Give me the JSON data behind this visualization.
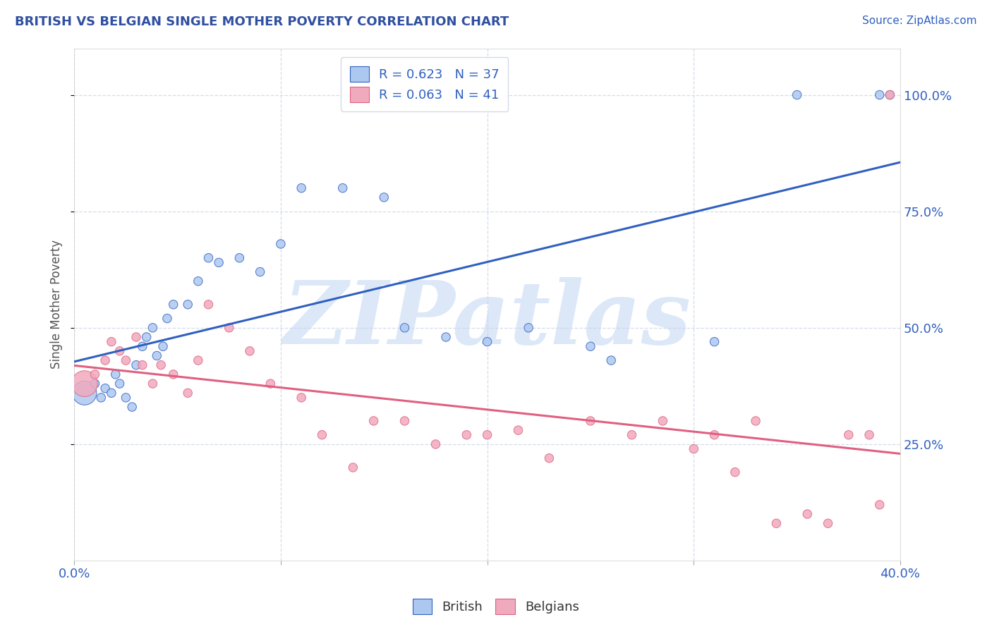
{
  "title": "BRITISH VS BELGIAN SINGLE MOTHER POVERTY CORRELATION CHART",
  "source_text": "Source: ZipAtlas.com",
  "ylabel": "Single Mother Poverty",
  "xlim": [
    0.0,
    0.4
  ],
  "ylim": [
    0.0,
    1.1
  ],
  "x_ticks": [
    0.0,
    0.1,
    0.2,
    0.3,
    0.4
  ],
  "y_ticks": [
    0.25,
    0.5,
    0.75,
    1.0
  ],
  "y_tick_labels": [
    "25.0%",
    "50.0%",
    "75.0%",
    "100.0%"
  ],
  "british_R": 0.623,
  "british_N": 37,
  "belgian_R": 0.063,
  "belgian_N": 41,
  "british_color": "#adc8f0",
  "belgian_color": "#f0aabe",
  "british_line_color": "#3060c0",
  "belgian_line_color": "#e06080",
  "watermark": "ZIPatlas",
  "watermark_color": "#dce8f8",
  "british_x": [
    0.005,
    0.01,
    0.013,
    0.015,
    0.018,
    0.02,
    0.022,
    0.025,
    0.028,
    0.03,
    0.033,
    0.035,
    0.038,
    0.04,
    0.043,
    0.045,
    0.048,
    0.055,
    0.06,
    0.065,
    0.07,
    0.08,
    0.09,
    0.1,
    0.11,
    0.13,
    0.15,
    0.16,
    0.18,
    0.2,
    0.22,
    0.25,
    0.26,
    0.31,
    0.35,
    0.39,
    0.395
  ],
  "british_y": [
    0.36,
    0.38,
    0.35,
    0.37,
    0.36,
    0.4,
    0.38,
    0.35,
    0.33,
    0.42,
    0.46,
    0.48,
    0.5,
    0.44,
    0.46,
    0.52,
    0.55,
    0.55,
    0.6,
    0.65,
    0.64,
    0.65,
    0.62,
    0.68,
    0.8,
    0.8,
    0.78,
    0.5,
    0.48,
    0.47,
    0.5,
    0.46,
    0.43,
    0.47,
    1.0,
    1.0,
    1.0
  ],
  "british_sizes": [
    600,
    80,
    80,
    80,
    80,
    80,
    80,
    80,
    80,
    80,
    80,
    80,
    80,
    80,
    80,
    80,
    80,
    80,
    80,
    80,
    80,
    80,
    80,
    80,
    80,
    80,
    80,
    80,
    80,
    80,
    80,
    80,
    80,
    80,
    80,
    80,
    80
  ],
  "belgian_x": [
    0.005,
    0.01,
    0.015,
    0.018,
    0.022,
    0.025,
    0.03,
    0.033,
    0.038,
    0.042,
    0.048,
    0.055,
    0.06,
    0.065,
    0.075,
    0.085,
    0.095,
    0.11,
    0.12,
    0.135,
    0.145,
    0.16,
    0.175,
    0.19,
    0.2,
    0.215,
    0.23,
    0.25,
    0.27,
    0.285,
    0.3,
    0.31,
    0.32,
    0.33,
    0.34,
    0.355,
    0.365,
    0.375,
    0.385,
    0.39,
    0.395
  ],
  "belgian_y": [
    0.38,
    0.4,
    0.43,
    0.47,
    0.45,
    0.43,
    0.48,
    0.42,
    0.38,
    0.42,
    0.4,
    0.36,
    0.43,
    0.55,
    0.5,
    0.45,
    0.38,
    0.35,
    0.27,
    0.2,
    0.3,
    0.3,
    0.25,
    0.27,
    0.27,
    0.28,
    0.22,
    0.3,
    0.27,
    0.3,
    0.24,
    0.27,
    0.19,
    0.3,
    0.08,
    0.1,
    0.08,
    0.27,
    0.27,
    0.12,
    1.0
  ],
  "belgian_sizes": [
    700,
    80,
    80,
    80,
    80,
    80,
    80,
    80,
    80,
    80,
    80,
    80,
    80,
    80,
    80,
    80,
    80,
    80,
    80,
    80,
    80,
    80,
    80,
    80,
    80,
    80,
    80,
    80,
    80,
    80,
    80,
    80,
    80,
    80,
    80,
    80,
    80,
    80,
    80,
    80,
    80
  ],
  "background_color": "#ffffff",
  "grid_color": "#c8d4e8",
  "title_color": "#3050a0",
  "axis_label_color": "#555555",
  "tick_label_color": "#3060c0"
}
